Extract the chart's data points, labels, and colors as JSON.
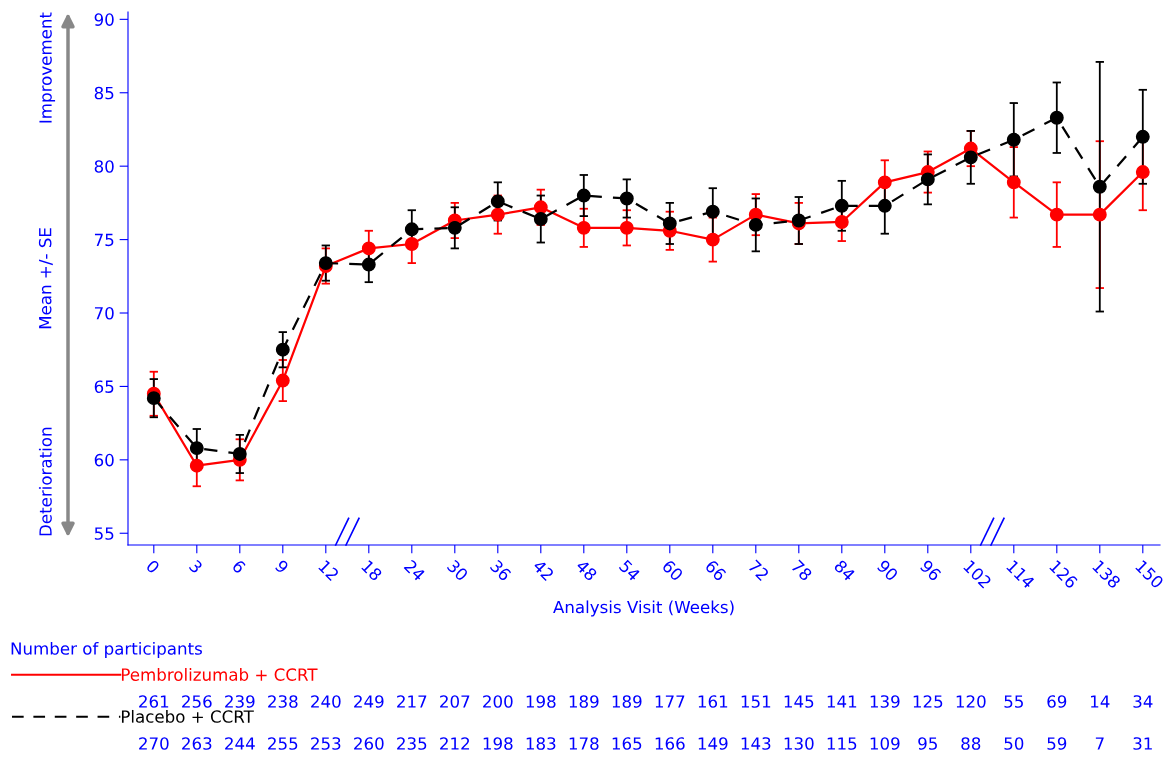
{
  "chart_data": {
    "type": "line",
    "xlabel": "Analysis Visit (Weeks)",
    "ylabel": "Mean +/- SE",
    "categories": [
      "0",
      "3",
      "6",
      "9",
      "12",
      "18",
      "24",
      "30",
      "36",
      "42",
      "48",
      "54",
      "60",
      "66",
      "72",
      "78",
      "84",
      "90",
      "96",
      "102",
      "114",
      "126",
      "138",
      "150"
    ],
    "ylim": [
      54.2,
      90.5
    ],
    "yticks": [
      55,
      60,
      65,
      70,
      75,
      80,
      85,
      90
    ],
    "marker": "circle",
    "grid": false,
    "legend": "bottom left",
    "series": [
      {
        "name": "Pembrolizumab + CCRT",
        "color": "#ff0000",
        "line_style": "solid",
        "values": [
          64.5,
          59.6,
          60.0,
          65.4,
          73.2,
          74.4,
          74.7,
          76.3,
          76.7,
          77.2,
          75.8,
          75.8,
          75.6,
          75.0,
          76.7,
          76.1,
          76.2,
          78.9,
          79.6,
          81.2,
          78.9,
          76.7,
          76.7,
          79.6
        ],
        "errors": [
          1.5,
          1.4,
          1.4,
          1.4,
          1.2,
          1.2,
          1.3,
          1.2,
          1.3,
          1.2,
          1.3,
          1.2,
          1.3,
          1.5,
          1.4,
          1.4,
          1.3,
          1.5,
          1.4,
          1.2,
          2.4,
          2.2,
          5.0,
          2.6
        ]
      },
      {
        "name": "Placebo + CCRT",
        "color": "#000000",
        "line_style": "dashed",
        "values": [
          64.2,
          60.8,
          60.4,
          67.5,
          73.4,
          73.3,
          75.7,
          75.8,
          77.6,
          76.4,
          78.0,
          77.8,
          76.1,
          76.9,
          76.0,
          76.3,
          77.3,
          77.3,
          79.1,
          80.6,
          81.8,
          83.3,
          78.6,
          82.0
        ],
        "errors": [
          1.3,
          1.3,
          1.3,
          1.2,
          1.2,
          1.2,
          1.3,
          1.4,
          1.3,
          1.6,
          1.4,
          1.3,
          1.4,
          1.6,
          1.8,
          1.6,
          1.7,
          1.9,
          1.7,
          1.8,
          2.5,
          2.4,
          8.5,
          3.2
        ]
      }
    ],
    "annotations": [
      "Improvement",
      "Deterioration",
      "Number of participants",
      "261",
      "256",
      "239",
      "238",
      "240",
      "249",
      "217",
      "207",
      "200",
      "198",
      "189",
      "189",
      "177",
      "161",
      "151",
      "145",
      "141",
      "139",
      "125",
      "120",
      "55",
      "69",
      "14",
      "34",
      "270",
      "263",
      "244",
      "255",
      "253",
      "260",
      "235",
      "212",
      "198",
      "183",
      "178",
      "165",
      "166",
      "149",
      "143",
      "130",
      "115",
      "109",
      "95",
      "88",
      "50",
      "59",
      "7",
      "31"
    ]
  }
}
